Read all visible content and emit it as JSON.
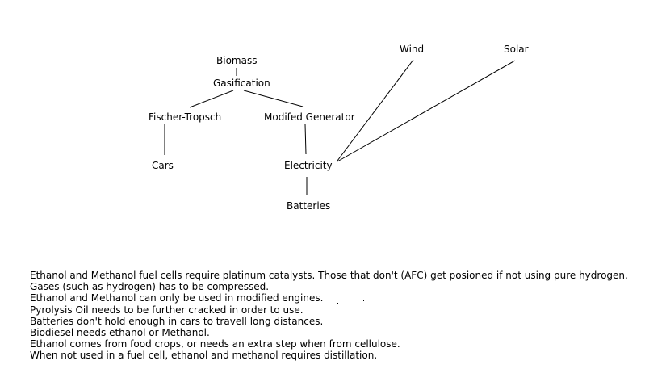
{
  "diagram": {
    "nodes": {
      "biomass": "Biomass",
      "gasification": "Gasification",
      "fischer_tropsch": "Fischer-Tropsch",
      "modified_generator": "Modifed Generator",
      "cars": "Cars",
      "electricity": "Electricity",
      "batteries": "Batteries",
      "wind": "Wind",
      "solar": "Solar"
    },
    "edges": [
      [
        "biomass",
        "gasification"
      ],
      [
        "gasification",
        "fischer_tropsch"
      ],
      [
        "gasification",
        "modified_generator"
      ],
      [
        "fischer_tropsch",
        "cars"
      ],
      [
        "modified_generator",
        "electricity"
      ],
      [
        "electricity",
        "batteries"
      ],
      [
        "wind",
        "electricity"
      ],
      [
        "solar",
        "electricity"
      ]
    ]
  },
  "notes": [
    "Ethanol and Methanol fuel cells require platinum catalysts. Those that don't (AFC) get posioned if not using pure hydrogen.",
    "Gases (such as hydrogen) has to be compressed.",
    "Ethanol and Methanol can only be used in modified engines.",
    "Pyrolysis Oil needs to be further cracked in order to use.",
    "Batteries don't hold enough in cars to travell long distances.",
    "Biodiesel needs ethanol or Methanol.",
    "Ethanol comes from food crops, or needs an extra step when from cellulose.",
    "When not used in a fuel cell, ethanol and methanol requires distillation."
  ]
}
